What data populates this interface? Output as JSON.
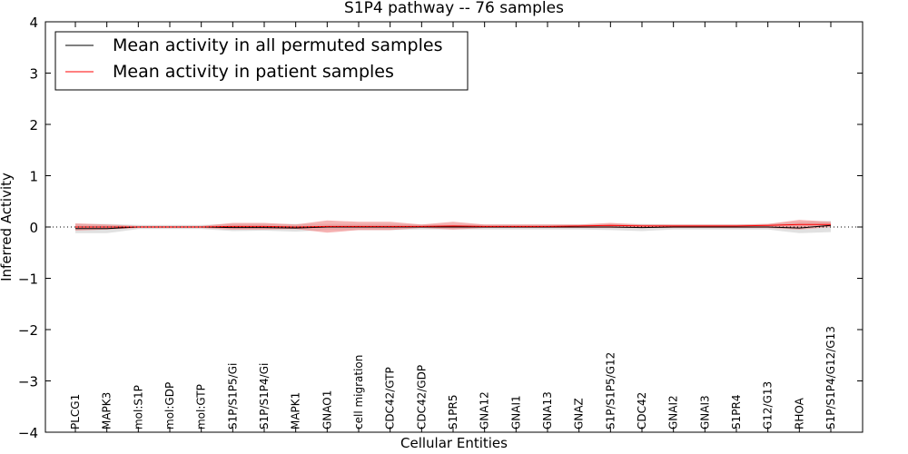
{
  "chart_data": {
    "type": "line",
    "title": "S1P4 pathway -- 76 samples",
    "xlabel": "Cellular Entities",
    "ylabel": "Inferred Activity",
    "ylim": [
      -4,
      4
    ],
    "yticks": [
      {
        "value": 4,
        "label": "4"
      },
      {
        "value": 3,
        "label": "3"
      },
      {
        "value": 2,
        "label": "2"
      },
      {
        "value": 1,
        "label": "1"
      },
      {
        "value": 0,
        "label": "0"
      },
      {
        "value": -1,
        "label": "−1"
      },
      {
        "value": -2,
        "label": "−2"
      },
      {
        "value": -3,
        "label": "−3"
      },
      {
        "value": -4,
        "label": "−4"
      }
    ],
    "categories": [
      "PLCG1",
      "MAPK3",
      "mol:S1P",
      "mol:GDP",
      "mol:GTP",
      "S1P/S1P5/Gi",
      "S1P/S1P4/Gi",
      "MAPK1",
      "GNAO1",
      "cell migration",
      "CDC42/GTP",
      "CDC42/GDP",
      "S1PR5",
      "GNA12",
      "GNAI1",
      "GNA13",
      "GNAZ",
      "S1P/S1P5/G12",
      "CDC42",
      "GNAI2",
      "GNAI3",
      "S1PR4",
      "G12/G13",
      "RHOA",
      "S1P/S1P4/G12/G13"
    ],
    "legend_position": "top-left",
    "series": [
      {
        "name": "Mean activity in all permuted samples",
        "color": "#000000",
        "band_color": "#c8c8c8",
        "values": [
          -0.03,
          -0.03,
          0.0,
          0.0,
          0.0,
          -0.01,
          -0.01,
          -0.02,
          0.0,
          0.0,
          0.0,
          0.0,
          0.0,
          0.0,
          0.0,
          0.0,
          0.0,
          0.0,
          -0.01,
          0.0,
          0.0,
          0.0,
          0.0,
          -0.02,
          0.03
        ],
        "lower": [
          -0.12,
          -0.12,
          -0.04,
          -0.04,
          -0.04,
          -0.08,
          -0.07,
          -0.09,
          -0.06,
          -0.06,
          -0.06,
          -0.05,
          -0.05,
          -0.05,
          -0.05,
          -0.05,
          -0.05,
          -0.06,
          -0.08,
          -0.05,
          -0.05,
          -0.05,
          -0.05,
          -0.12,
          -0.1
        ],
        "upper": [
          0.06,
          0.06,
          0.04,
          0.04,
          0.04,
          0.06,
          0.06,
          0.06,
          0.06,
          0.06,
          0.06,
          0.05,
          0.05,
          0.05,
          0.05,
          0.05,
          0.05,
          0.06,
          0.06,
          0.05,
          0.05,
          0.05,
          0.06,
          0.1,
          0.12
        ]
      },
      {
        "name": "Mean activity in patient samples",
        "color": "#ff0000",
        "band_color": "#f08080",
        "values": [
          0.0,
          0.0,
          0.0,
          0.0,
          0.0,
          0.01,
          0.01,
          0.0,
          0.01,
          0.01,
          0.01,
          0.01,
          0.02,
          0.01,
          0.01,
          0.01,
          0.02,
          0.03,
          0.02,
          0.02,
          0.02,
          0.02,
          0.03,
          0.05,
          0.05
        ],
        "lower": [
          -0.07,
          -0.05,
          -0.02,
          -0.02,
          -0.02,
          -0.05,
          -0.05,
          -0.04,
          -0.11,
          -0.06,
          -0.06,
          -0.02,
          -0.05,
          -0.02,
          -0.02,
          -0.02,
          -0.02,
          -0.02,
          -0.02,
          -0.02,
          -0.02,
          -0.02,
          -0.02,
          -0.05,
          0.0
        ],
        "upper": [
          0.07,
          0.05,
          0.02,
          0.02,
          0.02,
          0.08,
          0.08,
          0.05,
          0.13,
          0.1,
          0.1,
          0.05,
          0.1,
          0.05,
          0.05,
          0.05,
          0.05,
          0.08,
          0.05,
          0.05,
          0.05,
          0.05,
          0.06,
          0.14,
          0.1
        ]
      }
    ]
  }
}
